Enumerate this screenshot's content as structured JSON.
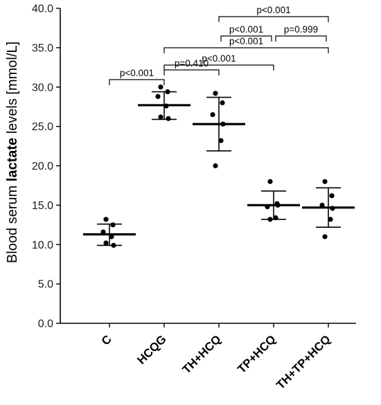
{
  "chart_data": {
    "type": "scatter",
    "title": "",
    "xlabel": "",
    "ylabel": {
      "prefix": "Blood serum ",
      "emphasis": "lactate",
      "suffix": " levels [mmol/L]"
    },
    "ylim": [
      0,
      40
    ],
    "yticks": [
      "0.0",
      "5.0",
      "10.0",
      "15.0",
      "20.0",
      "25.0",
      "30.0",
      "35.0",
      "40.0"
    ],
    "categories": [
      "C",
      "HCQG",
      "TH+HCQ",
      "TP+HCQ",
      "TH+TP+HCQ"
    ],
    "groups": [
      {
        "name": "C",
        "mean": 11.3,
        "sd_low": 9.9,
        "sd_high": 12.6,
        "points": [
          13.2,
          12.5,
          11.6,
          11.0,
          10.2,
          9.9
        ]
      },
      {
        "name": "HCQG",
        "mean": 27.7,
        "sd_low": 25.9,
        "sd_high": 29.4,
        "points": [
          30.0,
          29.4,
          28.8,
          27.6,
          26.2,
          26.0
        ]
      },
      {
        "name": "TH+HCQ",
        "mean": 25.3,
        "sd_low": 21.9,
        "sd_high": 28.7,
        "points": [
          29.2,
          28.0,
          26.5,
          23.2,
          20.0,
          25.3
        ]
      },
      {
        "name": "TP+HCQ",
        "mean": 15.0,
        "sd_low": 13.2,
        "sd_high": 16.8,
        "points": [
          18.0,
          15.2,
          14.8,
          13.4,
          13.2,
          15.0
        ]
      },
      {
        "name": "TH+TP+HCQ",
        "mean": 14.7,
        "sd_low": 12.2,
        "sd_high": 17.2,
        "points": [
          18.0,
          16.2,
          15.0,
          13.2,
          11.0,
          14.6
        ]
      }
    ],
    "comparisons": [
      {
        "from": "C",
        "to": "HCQG",
        "label": "p<0.001"
      },
      {
        "from": "HCQG",
        "to": "TH+HCQ",
        "label": "p=0.410"
      },
      {
        "from": "HCQG",
        "to": "TP+HCQ",
        "label": "p<0.001"
      },
      {
        "from": "HCQG",
        "to": "TH+TP+HCQ",
        "label": "p<0.001"
      },
      {
        "from": "TH+HCQ",
        "to": "TP+HCQ",
        "label": "p<0.001"
      },
      {
        "from": "TP+HCQ",
        "to": "TH+TP+HCQ",
        "label": "p=0.999"
      },
      {
        "from": "TH+HCQ",
        "to": "TH+TP+HCQ",
        "label": "p<0.001"
      }
    ],
    "grid": false,
    "marker_color": "#000000"
  }
}
